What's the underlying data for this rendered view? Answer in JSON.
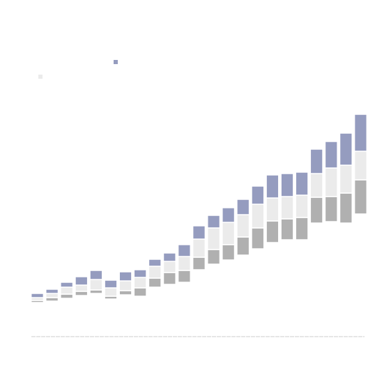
{
  "chart_data": {
    "type": "bar",
    "stacked": true,
    "ylim": [
      0,
      330
    ],
    "series": [
      {
        "color": "none",
        "values": [
          50,
          52,
          56,
          60,
          63,
          55,
          61,
          59,
          72,
          76,
          79,
          97,
          105,
          111,
          118,
          127,
          136,
          140,
          140,
          164,
          166,
          164,
          177
        ]
      },
      {
        "color": "#b0b0b0",
        "values": [
          3,
          5,
          6,
          6,
          5,
          4,
          6,
          12,
          13,
          17,
          17,
          18,
          21,
          22,
          26,
          30,
          31,
          30,
          32,
          37,
          36,
          43,
          49
        ]
      },
      {
        "color": "#ebebeb",
        "values": [
          4,
          6,
          10,
          9,
          15,
          12,
          14,
          15,
          17,
          16,
          20,
          26,
          31,
          32,
          32,
          34,
          33,
          32,
          32,
          34,
          41,
          40,
          41
        ]
      },
      {
        "color": "#959cbf",
        "values": [
          6,
          6,
          7,
          12,
          13,
          11,
          13,
          11,
          10,
          12,
          17,
          19,
          18,
          21,
          22,
          26,
          33,
          33,
          33,
          35,
          38,
          46,
          53
        ]
      }
    ]
  }
}
